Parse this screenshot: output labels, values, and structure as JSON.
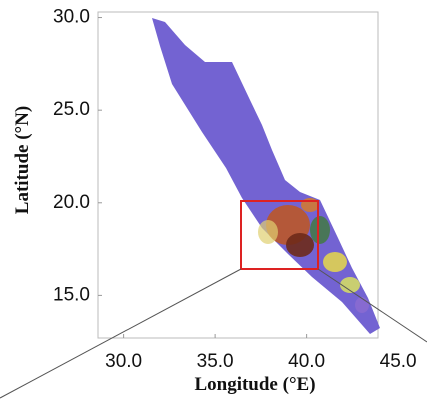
{
  "map": {
    "xlabel": "Longitude (°E)",
    "ylabel": "Latitude (°N)",
    "xlim": [
      28.6,
      43.9
    ],
    "ylim": [
      12.7,
      30.3
    ],
    "xticks": [
      {
        "value": 30,
        "label": "30.0"
      },
      {
        "value": 35,
        "label": "35.0"
      },
      {
        "value": 40,
        "label": "40.0"
      },
      {
        "value": 45,
        "label": "45.0"
      }
    ],
    "yticks": [
      {
        "value": 15,
        "label": "15.0"
      },
      {
        "value": 20,
        "label": "20.0"
      },
      {
        "value": 25,
        "label": "25.0"
      },
      {
        "value": 30,
        "label": "30.0"
      }
    ]
  }
}
